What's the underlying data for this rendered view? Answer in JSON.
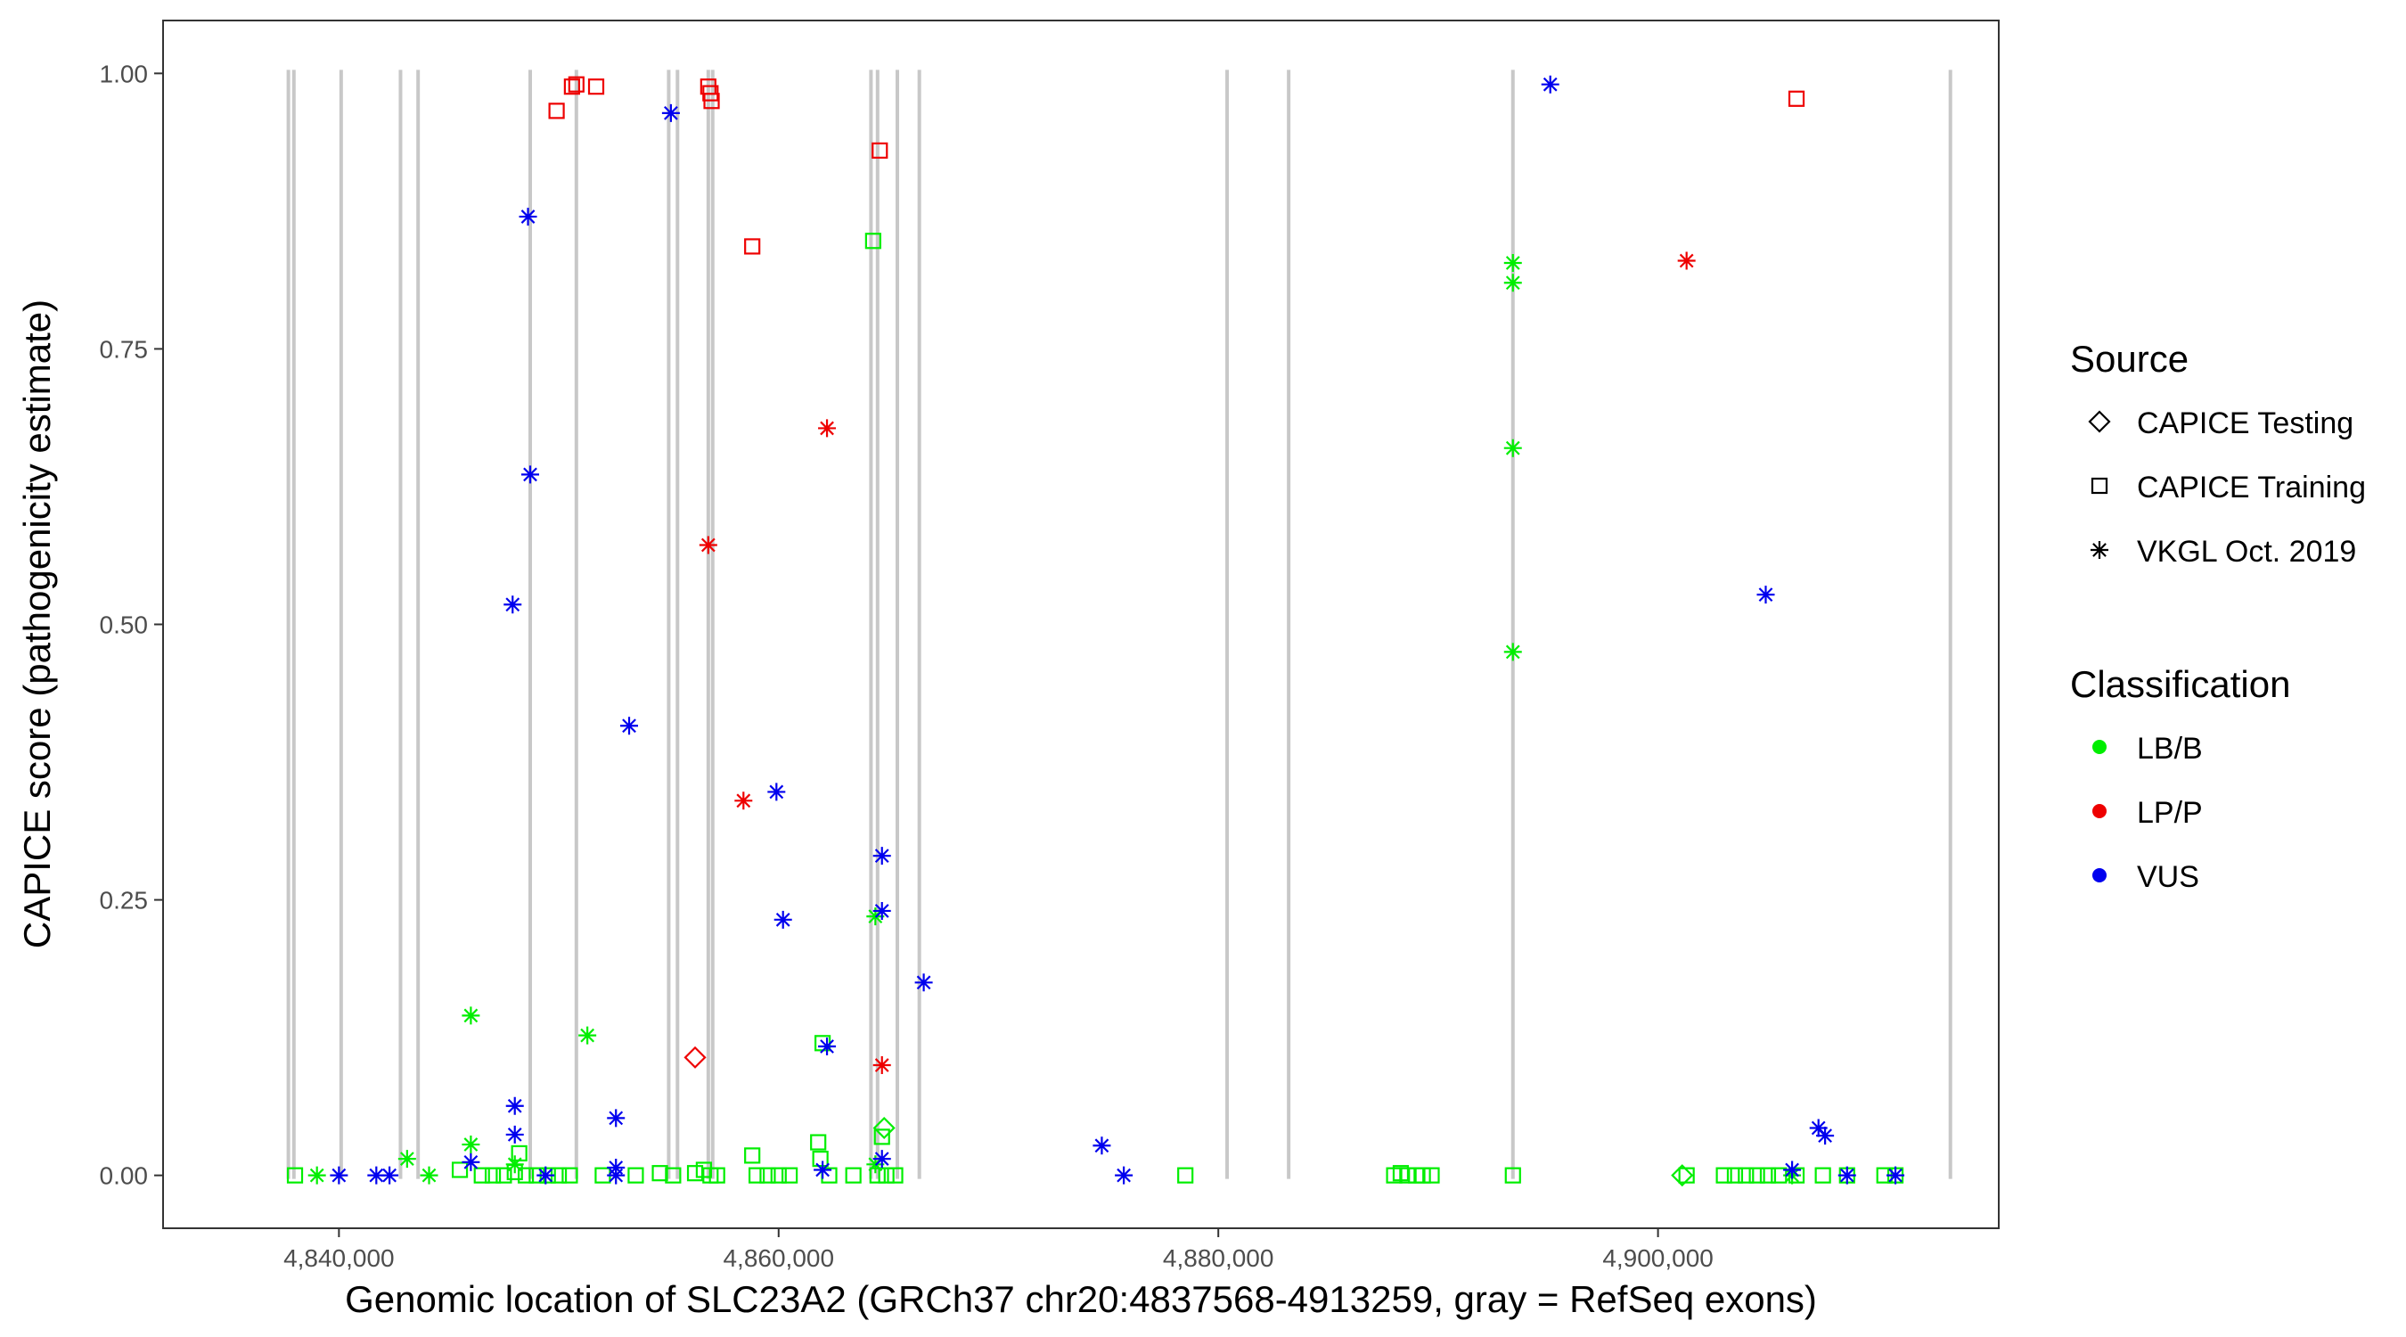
{
  "chart_data": {
    "type": "scatter",
    "title": "",
    "xlabel": "Genomic location of SLC23A2 (GRCh37 chr20:4837568-4913259, gray = RefSeq exons)",
    "ylabel": "CAPICE score (pathogenicity estimate)",
    "xlim": [
      4832000,
      4915500
    ],
    "ylim": [
      -0.048,
      1.048
    ],
    "x_ticks": [
      4840000,
      4860000,
      4880000,
      4900000
    ],
    "x_tick_labels": [
      "4,840,000",
      "4,860,000",
      "4,880,000",
      "4,900,000"
    ],
    "y_ticks": [
      0,
      0.25,
      0.5,
      0.75,
      1.0
    ],
    "y_tick_labels": [
      "0.00",
      "0.25",
      "0.50",
      "0.75",
      "1.00"
    ],
    "exons": [
      4837700,
      4837950,
      4840100,
      4842800,
      4843600,
      4848700,
      4850800,
      4855000,
      4855400,
      4856800,
      4857000,
      4864200,
      4864500,
      4865400,
      4866400,
      4880400,
      4883200,
      4893400,
      4913300
    ],
    "colors": {
      "LB/B": "#00ee00",
      "LP/P": "#ee0000",
      "VUS": "#0000ee",
      "exon": "#c8c8c8"
    },
    "legend": {
      "source_title": "Source",
      "source_items": [
        {
          "label": "CAPICE Testing",
          "shape": "diamond"
        },
        {
          "label": "CAPICE Training",
          "shape": "square"
        },
        {
          "label": "VKGL Oct. 2019",
          "shape": "asterisk"
        }
      ],
      "class_title": "Classification",
      "class_items": [
        {
          "label": "LB/B",
          "color": "#00ee00"
        },
        {
          "label": "LP/P",
          "color": "#ee0000"
        },
        {
          "label": "VUS",
          "color": "#0000ee"
        }
      ]
    },
    "series": [
      {
        "name": "LB/B · CAPICE Training",
        "cls": "LB/B",
        "src": "square",
        "points": [
          [
            4838000,
            0
          ],
          [
            4845500,
            0.005
          ],
          [
            4846500,
            0
          ],
          [
            4847000,
            0
          ],
          [
            4847500,
            0
          ],
          [
            4848000,
            0.003
          ],
          [
            4848200,
            0.02
          ],
          [
            4848500,
            0
          ],
          [
            4849000,
            0
          ],
          [
            4849500,
            0
          ],
          [
            4850000,
            0
          ],
          [
            4850500,
            0
          ],
          [
            4852000,
            0
          ],
          [
            4853500,
            0
          ],
          [
            4854600,
            0.002
          ],
          [
            4855200,
            0
          ],
          [
            4856200,
            0.002
          ],
          [
            4856600,
            0.005
          ],
          [
            4856900,
            0
          ],
          [
            4857200,
            0
          ],
          [
            4858800,
            0.018
          ],
          [
            4859000,
            0
          ],
          [
            4859500,
            0
          ],
          [
            4860000,
            0
          ],
          [
            4860500,
            0
          ],
          [
            4861800,
            0.03
          ],
          [
            4861900,
            0.015
          ],
          [
            4862000,
            0.12
          ],
          [
            4862300,
            0
          ],
          [
            4863400,
            0
          ],
          [
            4864300,
            0.848
          ],
          [
            4864500,
            0
          ],
          [
            4864700,
            0.035
          ],
          [
            4864900,
            0
          ],
          [
            4865300,
            0
          ],
          [
            4878500,
            0
          ],
          [
            4888000,
            0
          ],
          [
            4888300,
            0.002
          ],
          [
            4888600,
            0
          ],
          [
            4889000,
            0
          ],
          [
            4889300,
            0
          ],
          [
            4889700,
            0
          ],
          [
            4893400,
            0
          ],
          [
            4901300,
            0
          ],
          [
            4903000,
            0
          ],
          [
            4903500,
            0
          ],
          [
            4904000,
            0
          ],
          [
            4904500,
            0
          ],
          [
            4905000,
            0
          ],
          [
            4905500,
            0
          ],
          [
            4906300,
            0
          ],
          [
            4907500,
            0
          ],
          [
            4908600,
            0
          ],
          [
            4910300,
            0
          ],
          [
            4910800,
            0
          ]
        ]
      },
      {
        "name": "LB/B · CAPICE Testing",
        "cls": "LB/B",
        "src": "diamond",
        "points": [
          [
            4901100,
            0
          ],
          [
            4864800,
            0.043
          ]
        ]
      },
      {
        "name": "LB/B · VKGL Oct. 2019",
        "cls": "LB/B",
        "src": "asterisk",
        "points": [
          [
            4839000,
            0
          ],
          [
            4843100,
            0.015
          ],
          [
            4844100,
            0
          ],
          [
            4846000,
            0.145
          ],
          [
            4846000,
            0.028
          ],
          [
            4848000,
            0.01
          ],
          [
            4851300,
            0.127
          ],
          [
            4864400,
            0.235
          ],
          [
            4864400,
            0.01
          ],
          [
            4893400,
            0.828
          ],
          [
            4893400,
            0.81
          ],
          [
            4893400,
            0.66
          ],
          [
            4893400,
            0.475
          ],
          [
            4906100,
            0
          ]
        ]
      },
      {
        "name": "LP/P · CAPICE Training",
        "cls": "LP/P",
        "src": "square",
        "points": [
          [
            4849900,
            0.966
          ],
          [
            4850600,
            0.988
          ],
          [
            4850800,
            0.99
          ],
          [
            4851700,
            0.988
          ],
          [
            4856800,
            0.988
          ],
          [
            4856900,
            0.982
          ],
          [
            4856950,
            0.975
          ],
          [
            4858800,
            0.843
          ],
          [
            4864600,
            0.93
          ],
          [
            4906300,
            0.977
          ]
        ]
      },
      {
        "name": "LP/P · CAPICE Testing",
        "cls": "LP/P",
        "src": "diamond",
        "points": [
          [
            4856200,
            0.107
          ]
        ]
      },
      {
        "name": "LP/P · VKGL Oct. 2019",
        "cls": "LP/P",
        "src": "asterisk",
        "points": [
          [
            4856800,
            0.572
          ],
          [
            4858400,
            0.34
          ],
          [
            4862200,
            0.678
          ],
          [
            4864700,
            0.1
          ],
          [
            4901300,
            0.83
          ]
        ]
      },
      {
        "name": "VUS · VKGL Oct. 2019",
        "cls": "VUS",
        "src": "asterisk",
        "points": [
          [
            4840000,
            0
          ],
          [
            4841700,
            0
          ],
          [
            4842300,
            0
          ],
          [
            4846000,
            0.012
          ],
          [
            4847900,
            0.518
          ],
          [
            4848000,
            0.063
          ],
          [
            4848000,
            0.037
          ],
          [
            4848600,
            0.87
          ],
          [
            4848700,
            0.636
          ],
          [
            4849400,
            0
          ],
          [
            4852600,
            0.052
          ],
          [
            4852600,
            0.007
          ],
          [
            4852600,
            0
          ],
          [
            4853200,
            0.408
          ],
          [
            4855100,
            0.964
          ],
          [
            4859900,
            0.348
          ],
          [
            4860200,
            0.232
          ],
          [
            4862000,
            0.005
          ],
          [
            4862200,
            0.117
          ],
          [
            4864700,
            0.29
          ],
          [
            4864700,
            0.24
          ],
          [
            4864700,
            0.015
          ],
          [
            4866600,
            0.175
          ],
          [
            4874700,
            0.027
          ],
          [
            4875700,
            0
          ],
          [
            4895100,
            0.99
          ],
          [
            4904900,
            0.527
          ],
          [
            4906100,
            0.005
          ],
          [
            4907300,
            0.043
          ],
          [
            4907600,
            0.036
          ],
          [
            4908600,
            0
          ],
          [
            4910800,
            0
          ]
        ]
      }
    ]
  }
}
